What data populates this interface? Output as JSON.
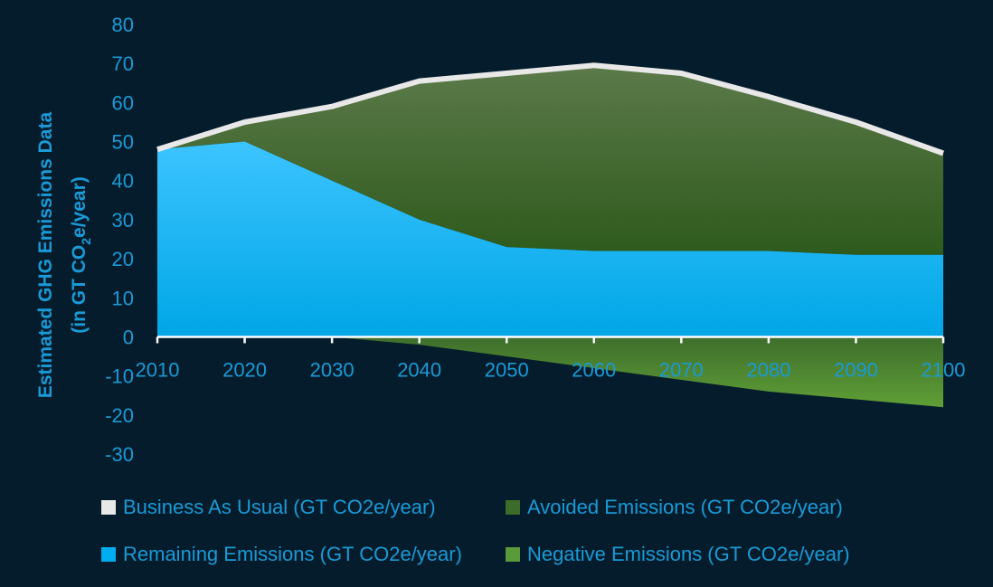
{
  "chart_data": {
    "type": "area",
    "ylabel_line1": "Estimated GHG Emissions Data",
    "ylabel_line2_prefix": "(in GT CO",
    "ylabel_line2_sub": "2",
    "ylabel_line2_suffix": "e/year)",
    "x": [
      2010,
      2020,
      2030,
      2040,
      2050,
      2060,
      2070,
      2080,
      2090,
      2100
    ],
    "x_tick_labels": [
      "2010",
      "2020",
      "2030",
      "2040",
      "2050",
      "2060",
      "2070",
      "2080",
      "2090",
      "2100"
    ],
    "ylim": [
      -30,
      80
    ],
    "y_ticks": [
      80,
      70,
      60,
      50,
      40,
      30,
      20,
      10,
      0,
      -10,
      -20,
      -30
    ],
    "y_tick_labels": [
      "80",
      "70",
      "60",
      "50",
      "40",
      "30",
      "20",
      "10",
      "0",
      "-10",
      "-20",
      "-30"
    ],
    "grid": false,
    "legend_position": "bottom",
    "series": [
      {
        "name": "Business As Usual (GT CO2e/year)",
        "kind": "line",
        "color": "#e8e8e8",
        "values": [
          48,
          55,
          59,
          65.5,
          67.5,
          69.5,
          67.5,
          61.5,
          55,
          47
        ]
      },
      {
        "name": "Avoided Emissions (GT CO2e/year)",
        "kind": "area",
        "color": "#3d6b2a",
        "values": [
          0,
          5,
          19,
          35.5,
          44.5,
          47.5,
          45.5,
          39.5,
          34,
          26
        ]
      },
      {
        "name": "Remaining Emissions (GT CO2e/year)",
        "kind": "area",
        "color": "#00aef0",
        "values": [
          48,
          50,
          40,
          30,
          23,
          22,
          22,
          22,
          21,
          21
        ]
      },
      {
        "name": "Negative Emissions (GT CO2e/year)",
        "kind": "area",
        "color": "#5a9a3a",
        "values": [
          0,
          0,
          0,
          -2,
          -5,
          -8,
          -11,
          -14,
          -16,
          -18
        ]
      }
    ]
  },
  "colors": {
    "background": "#041c2c",
    "axis_text": "#1a9ad6",
    "legend_text": "#1a9ad6",
    "axis_line": "#ffffff"
  }
}
